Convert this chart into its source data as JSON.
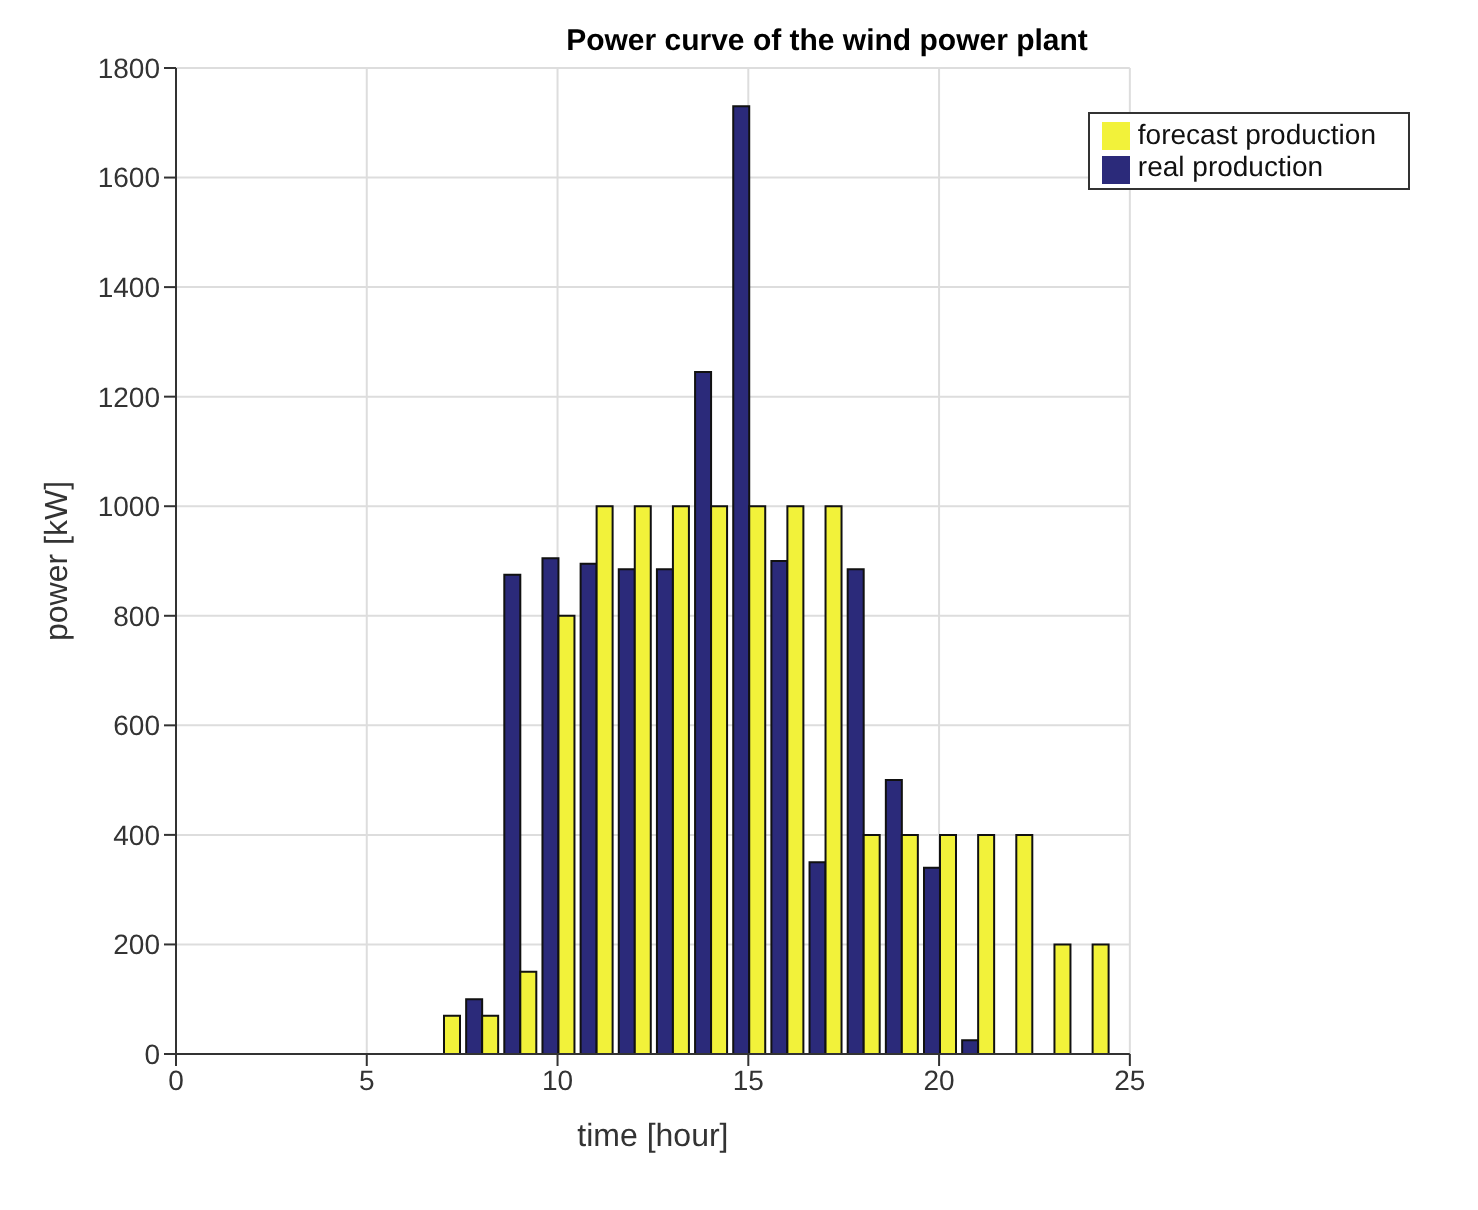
{
  "chart_data": {
    "type": "bar",
    "title": "Power curve of the wind power plant",
    "xlabel": "time [hour]",
    "ylabel": "power [kW]",
    "x": [
      1,
      2,
      3,
      4,
      5,
      6,
      7,
      8,
      9,
      10,
      11,
      12,
      13,
      14,
      15,
      16,
      17,
      18,
      19,
      20,
      21,
      22,
      23,
      24
    ],
    "series": [
      {
        "name": "real production",
        "color": "#2b2a7a",
        "values": [
          0,
          0,
          0,
          0,
          0,
          0,
          0,
          100,
          875,
          905,
          895,
          885,
          885,
          1245,
          1730,
          900,
          350,
          885,
          500,
          340,
          25,
          0,
          0,
          0
        ]
      },
      {
        "name": "forecast production",
        "color": "#f2f23a",
        "values": [
          0,
          0,
          0,
          0,
          0,
          0,
          70,
          70,
          150,
          800,
          1000,
          1000,
          1000,
          1000,
          1000,
          1000,
          1000,
          400,
          400,
          400,
          400,
          400,
          200,
          200
        ]
      }
    ],
    "xlim": [
      0,
      25
    ],
    "xticks": [
      0,
      5,
      10,
      15,
      20,
      25
    ],
    "ylim": [
      0,
      1800
    ],
    "yticks": [
      0,
      200,
      400,
      600,
      800,
      1000,
      1200,
      1400,
      1600,
      1800
    ],
    "grid": true,
    "legend": "top right"
  }
}
